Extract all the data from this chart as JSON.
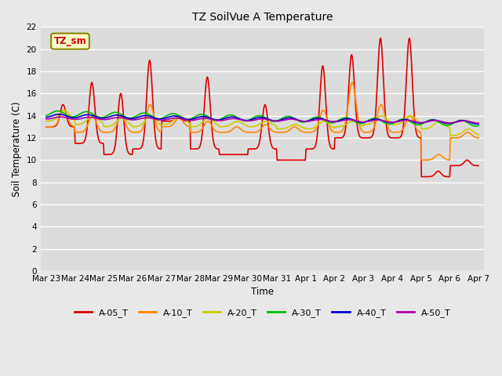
{
  "title": "TZ SoilVue A Temperature",
  "xlabel": "Time",
  "ylabel": "Soil Temperature (C)",
  "ylim": [
    0,
    22
  ],
  "yticks": [
    0,
    2,
    4,
    6,
    8,
    10,
    12,
    14,
    16,
    18,
    20,
    22
  ],
  "bg_color": "#dcdcdc",
  "fig_color": "#e8e8e8",
  "annotation_text": "TZ_sm",
  "annotation_color": "#cc0000",
  "annotation_bg": "#ffffcc",
  "series_colors": [
    "#dd0000",
    "#ff8800",
    "#cccc00",
    "#00bb00",
    "#0000cc",
    "#aa00aa"
  ],
  "series_names": [
    "A-05_T",
    "A-10_T",
    "A-20_T",
    "A-30_T",
    "A-40_T",
    "A-50_T"
  ],
  "x_dates": [
    "Mar 23",
    "Mar 24",
    "Mar 25",
    "Mar 26",
    "Mar 27",
    "Mar 28",
    "Mar 29",
    "Mar 30",
    "Mar 31",
    "Apr 1",
    "Apr 2",
    "Apr 3",
    "Apr 4",
    "Apr 5",
    "Apr 6",
    "Apr 7"
  ],
  "A05_peaks": [
    15.0,
    17.0,
    16.0,
    19.0,
    14.0,
    17.5,
    10.5,
    15.0,
    10.0,
    18.5,
    19.5,
    21.0,
    21.0,
    9.0,
    10.0,
    10.0
  ],
  "A05_troughs": [
    13.0,
    11.5,
    10.5,
    11.0,
    13.5,
    11.0,
    10.5,
    11.0,
    10.0,
    11.0,
    12.0,
    12.0,
    12.0,
    8.5,
    9.5,
    10.0
  ],
  "A10_peaks": [
    14.5,
    14.0,
    14.0,
    15.0,
    13.8,
    13.5,
    13.0,
    13.2,
    13.0,
    14.5,
    17.0,
    15.0,
    14.0,
    10.5,
    12.5,
    12.5
  ],
  "A10_troughs": [
    13.0,
    12.5,
    12.5,
    12.5,
    13.0,
    12.5,
    12.5,
    12.5,
    12.5,
    12.5,
    12.5,
    12.5,
    12.5,
    10.0,
    12.0,
    12.0
  ],
  "A20_peaks": [
    14.5,
    14.0,
    13.8,
    14.0,
    14.0,
    13.8,
    13.5,
    13.5,
    13.2,
    13.5,
    13.5,
    14.0,
    14.0,
    13.5,
    12.8,
    12.8
  ],
  "A20_troughs": [
    13.5,
    13.2,
    13.0,
    13.0,
    13.2,
    13.0,
    13.0,
    13.0,
    12.8,
    12.8,
    13.0,
    13.2,
    13.2,
    12.8,
    12.2,
    12.2
  ],
  "A30_base": 14.2,
  "A30_trend": -0.06,
  "A40_base": 14.0,
  "A40_trend": -0.04,
  "A50_base": 13.8,
  "A50_trend": -0.025
}
